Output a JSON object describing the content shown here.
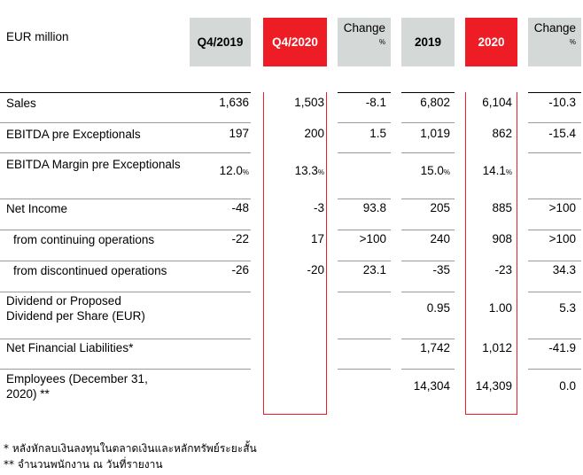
{
  "header": {
    "unit_label": "EUR million",
    "col_q4_2019": "Q4/2019",
    "col_q4_2020": "Q4/2020",
    "col_change_q": "Change",
    "col_change_q_unit": "%",
    "col_2019": "2019",
    "col_2020": "2020",
    "col_change_y": "Change",
    "col_change_y_unit": "%"
  },
  "rows": [
    {
      "label": "Sales",
      "q4_2019": "1,636",
      "q4_2020": "1,503",
      "chg_q": "-8.1",
      "y2019": "6,802",
      "y2020": "6,104",
      "chg_y": "-10.3"
    },
    {
      "label": "EBITDA pre Exceptionals",
      "q4_2019": "197",
      "q4_2020": "200",
      "chg_q": "1.5",
      "y2019": "1,019",
      "y2020": "862",
      "chg_y": "-15.4"
    },
    {
      "label": "EBITDA Margin pre Exceptionals",
      "q4_2019": "12.0",
      "q4_2020": "13.3",
      "chg_q": "",
      "y2019": "15.0",
      "y2020": "14.1",
      "chg_y": "",
      "pct": "%"
    },
    {
      "label": "Net Income",
      "q4_2019": "-48",
      "q4_2020": "-3",
      "chg_q": "93.8",
      "y2019": "205",
      "y2020": "885",
      "chg_y": ">100"
    },
    {
      "label": "from continuing operations",
      "q4_2019": "-22",
      "q4_2020": "17",
      "chg_q": ">100",
      "y2019": "240",
      "y2020": "908",
      "chg_y": ">100"
    },
    {
      "label": "from discontinued operations",
      "q4_2019": "-26",
      "q4_2020": "-20",
      "chg_q": "23.1",
      "y2019": "-35",
      "y2020": "-23",
      "chg_y": "34.3"
    },
    {
      "label_line1": "Dividend or Proposed",
      "label_line2": "Dividend per Share (EUR)",
      "q4_2019": "",
      "q4_2020": "",
      "chg_q": "",
      "y2019": "0.95",
      "y2020": "1.00",
      "chg_y": "5.3"
    },
    {
      "label": "Net Financial Liabilities*",
      "q4_2019": "",
      "q4_2020": "",
      "chg_q": "",
      "y2019": "1,742",
      "y2020": "1,012",
      "chg_y": "-41.9"
    },
    {
      "label_line1": "Employees (December 31,",
      "label_line2": "2020) **",
      "q4_2019": "",
      "q4_2020": "",
      "chg_q": "",
      "y2019": "14,304",
      "y2020": "14,309",
      "chg_y": "0.0"
    }
  ],
  "footnotes": {
    "note1": "* หลังหักลบเงินลงทุนในตลาดเงินและหลักทรัพย์ระยะสั้น",
    "note2": "** จำนวนพนักงาน ณ วันที่รายงาน"
  }
}
